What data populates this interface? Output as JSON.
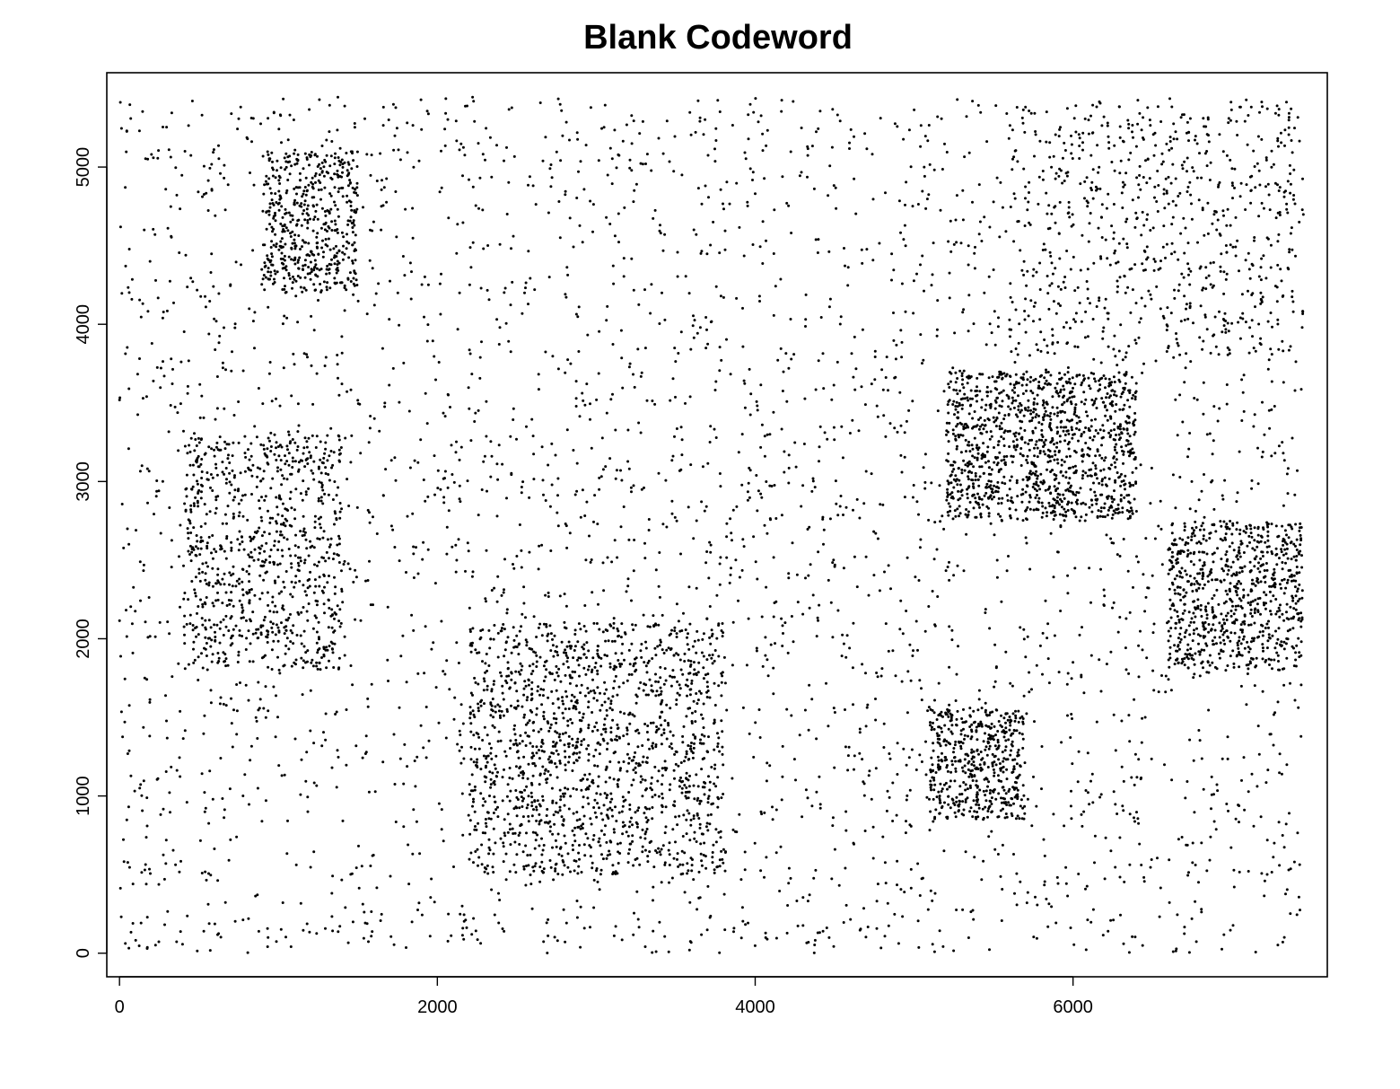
{
  "chart_data": {
    "type": "scatter",
    "title": "Blank Codeword",
    "xlabel": "",
    "ylabel": "",
    "xlim": [
      -80,
      7600
    ],
    "ylim": [
      -150,
      5600
    ],
    "x_ticks": [
      0,
      2000,
      4000,
      6000
    ],
    "y_ticks": [
      0,
      1000,
      2000,
      3000,
      4000,
      5000
    ],
    "x_tick_labels": [
      "0",
      "2000",
      "4000",
      "6000"
    ],
    "y_tick_labels": [
      "0",
      "1000",
      "2000",
      "3000",
      "4000",
      "5000"
    ],
    "grid": false,
    "legend": "none",
    "point_color": "#000000",
    "series": [
      {
        "name": "Blank Codeword",
        "n_points": 9000,
        "x_range": [
          0,
          7450
        ],
        "y_range": [
          0,
          5450
        ],
        "density_regions": [
          {
            "label": "background",
            "x": [
              0,
              7450
            ],
            "y": [
              0,
              5450
            ],
            "weight": 0.4
          },
          {
            "label": "dense lower-middle band",
            "x": [
              2200,
              3800
            ],
            "y": [
              500,
              2100
            ],
            "weight": 0.16
          },
          {
            "label": "left-middle cluster",
            "x": [
              400,
              1400
            ],
            "y": [
              1800,
              3300
            ],
            "weight": 0.08
          },
          {
            "label": "upper-right block",
            "x": [
              5200,
              6400
            ],
            "y": [
              2750,
              3700
            ],
            "weight": 0.12
          },
          {
            "label": "right-side cluster",
            "x": [
              6600,
              7450
            ],
            "y": [
              1800,
              2750
            ],
            "weight": 0.08
          },
          {
            "label": "lower-right cluster",
            "x": [
              5100,
              5700
            ],
            "y": [
              850,
              1550
            ],
            "weight": 0.05
          },
          {
            "label": "upper-right diagonal",
            "x": [
              5600,
              7400
            ],
            "y": [
              3800,
              5400
            ],
            "weight": 0.06
          },
          {
            "label": "top-left cluster",
            "x": [
              900,
              1500
            ],
            "y": [
              4200,
              5100
            ],
            "weight": 0.05
          }
        ]
      }
    ]
  }
}
